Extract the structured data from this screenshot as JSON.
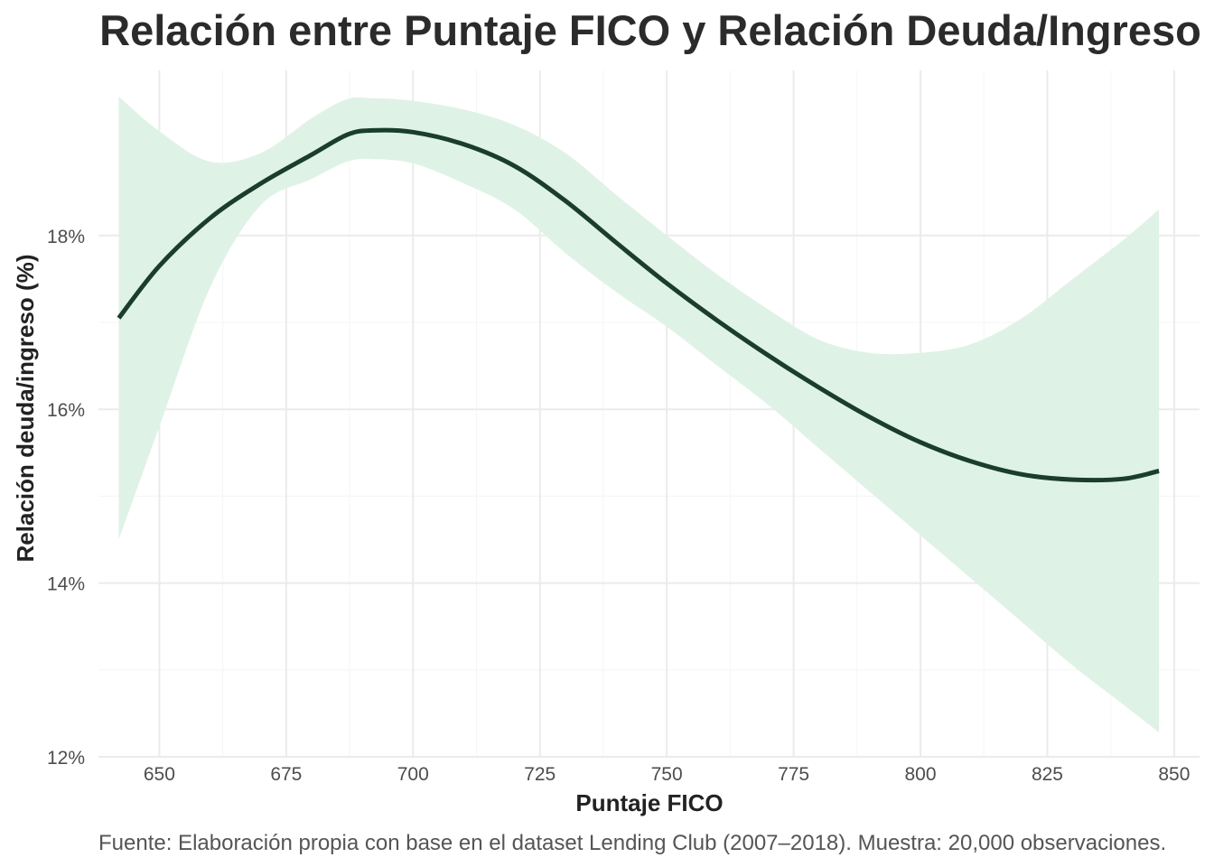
{
  "chart_data": {
    "type": "line",
    "title": "Relación entre Puntaje FICO y Relación Deuda/Ingreso",
    "xlabel": "Puntaje FICO",
    "ylabel": "Relación deuda/ingreso (%)",
    "caption": "Fuente: Elaboración propia con base en el dataset Lending Club (2007–2018). Muestra: 20,000 observaciones.",
    "xlim": [
      638,
      855
    ],
    "ylim": [
      12,
      19.9
    ],
    "x_ticks": [
      650,
      675,
      700,
      725,
      750,
      775,
      800,
      825,
      850
    ],
    "x_tick_labels": [
      "650",
      "675",
      "700",
      "725",
      "750",
      "775",
      "800",
      "825",
      "850"
    ],
    "y_ticks": [
      12,
      14,
      16,
      18
    ],
    "y_tick_labels": [
      "12%",
      "14%",
      "16%",
      "18%"
    ],
    "grid": true,
    "legend": "none",
    "colors": {
      "line": "#1a3d2e",
      "band": "#dff2e6",
      "grid": "#ebebeb"
    },
    "series": [
      {
        "x": [
          642,
          650,
          660,
          670,
          680,
          687,
          692,
          700,
          710,
          720,
          730,
          740,
          750,
          760,
          770,
          780,
          790,
          800,
          810,
          820,
          830,
          840,
          847
        ],
        "y": [
          17.05,
          17.65,
          18.2,
          18.6,
          18.93,
          19.16,
          19.21,
          19.19,
          19.05,
          18.8,
          18.4,
          17.92,
          17.45,
          17.02,
          16.62,
          16.25,
          15.91,
          15.62,
          15.4,
          15.25,
          15.19,
          15.2,
          15.29
        ],
        "lower": [
          14.5,
          15.8,
          17.4,
          18.35,
          18.65,
          18.85,
          18.88,
          18.83,
          18.6,
          18.3,
          17.8,
          17.35,
          16.95,
          16.5,
          16.05,
          15.55,
          15.05,
          14.55,
          14.05,
          13.55,
          13.05,
          12.6,
          12.28
        ],
        "upper": [
          19.6,
          19.2,
          18.85,
          18.95,
          19.35,
          19.57,
          19.58,
          19.55,
          19.45,
          19.27,
          18.95,
          18.47,
          18.0,
          17.55,
          17.15,
          16.8,
          16.65,
          16.65,
          16.75,
          17.05,
          17.5,
          17.95,
          18.3
        ]
      }
    ]
  }
}
